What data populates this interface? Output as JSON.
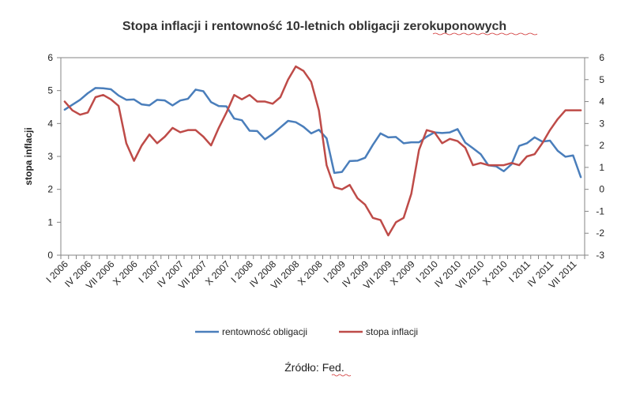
{
  "chart_data": {
    "type": "line",
    "title": "Stopa inflacji i rentowność 10-letnich obligacji zerokuponowych",
    "ylabel": "stopa inflacji",
    "source": "Źródło: Fed.",
    "x_tick_labels": [
      "I 2006",
      "IV 2006",
      "VII 2006",
      "X 2006",
      "I 2007",
      "IV 2007",
      "VII 2007",
      "X 2007",
      "I 2008",
      "IV 2008",
      "VII 2008",
      "X 2008",
      "I 2009",
      "IV 2009",
      "VII 2009",
      "X 2009",
      "I 2010",
      "IV 2010",
      "VII 2010",
      "X 2010",
      "I 2011",
      "IV 2011",
      "VII 2011"
    ],
    "y_left": {
      "range": [
        0,
        6
      ],
      "ticks": [
        "0",
        "1",
        "2",
        "3",
        "4",
        "5",
        "6"
      ]
    },
    "y_right": {
      "range": [
        -3,
        6
      ],
      "ticks": [
        "-3",
        "-2",
        "-1",
        "0",
        "1",
        "2",
        "3",
        "4",
        "5",
        "6"
      ]
    },
    "grid": false,
    "legend_position": "bottom",
    "series": [
      {
        "name": "rentowność obligacji",
        "color": "#4a7ebb",
        "axis": "left",
        "x_start": "I 2006",
        "values": [
          4.42,
          4.57,
          4.72,
          4.92,
          5.08,
          5.07,
          5.04,
          4.85,
          4.72,
          4.73,
          4.58,
          4.55,
          4.72,
          4.7,
          4.55,
          4.7,
          4.75,
          5.03,
          4.98,
          4.65,
          4.53,
          4.52,
          4.15,
          4.1,
          3.78,
          3.77,
          3.52,
          3.68,
          3.88,
          4.08,
          4.04,
          3.9,
          3.7,
          3.81,
          3.55,
          2.5,
          2.53,
          2.86,
          2.87,
          2.96,
          3.35,
          3.7,
          3.58,
          3.59,
          3.4,
          3.43,
          3.43,
          3.6,
          3.73,
          3.71,
          3.73,
          3.83,
          3.42,
          3.25,
          3.07,
          2.73,
          2.7,
          2.55,
          2.76,
          3.32,
          3.4,
          3.58,
          3.45,
          3.48,
          3.17,
          2.99,
          3.03,
          2.37
        ]
      },
      {
        "name": "stopa inflacji",
        "color": "#be4b48",
        "axis": "right",
        "x_start": "I 2006",
        "values": [
          4.0,
          3.6,
          3.4,
          3.5,
          4.2,
          4.3,
          4.1,
          3.8,
          2.1,
          1.3,
          2.0,
          2.5,
          2.1,
          2.4,
          2.8,
          2.6,
          2.7,
          2.7,
          2.4,
          2.0,
          2.8,
          3.5,
          4.3,
          4.1,
          4.3,
          4.0,
          4.0,
          3.9,
          4.2,
          5.0,
          5.6,
          5.4,
          4.9,
          3.6,
          1.1,
          0.1,
          0.0,
          0.2,
          -0.4,
          -0.7,
          -1.3,
          -1.4,
          -2.1,
          -1.5,
          -1.3,
          -0.2,
          1.8,
          2.7,
          2.6,
          2.1,
          2.3,
          2.2,
          1.9,
          1.1,
          1.2,
          1.1,
          1.1,
          1.1,
          1.2,
          1.1,
          1.5,
          1.6,
          2.1,
          2.7,
          3.2,
          3.6,
          3.6,
          3.6
        ]
      }
    ]
  }
}
